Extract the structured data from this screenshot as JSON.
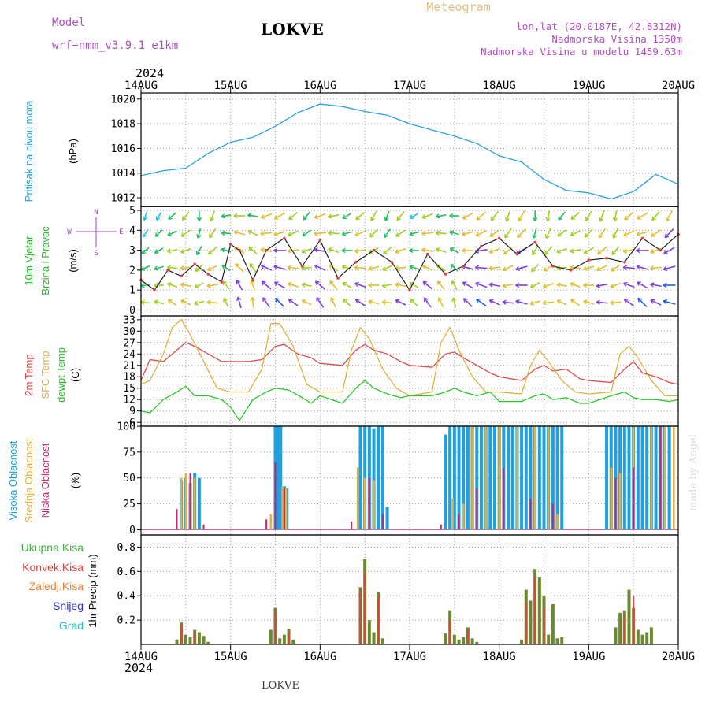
{
  "header": {
    "model_label": "Model",
    "model_name": "wrf−nmm_v3.9.1 e1km",
    "station": "LOKVE",
    "title": "Meteogram",
    "lonlat": "lon,lat (20.0187E, 42.8312N)",
    "altitude": "Nadmorska Visina 1350m",
    "model_altitude": "Nadmorska Visina u modelu 1459.63m",
    "year": "2024",
    "footer_station": "LOKVE",
    "credit": "made by Angel"
  },
  "time_axis": {
    "labels": [
      "14AUG",
      "15AUG",
      "16AUG",
      "17AUG",
      "18AUG",
      "19AUG",
      "20AUG"
    ],
    "range_days": [
      0,
      6
    ]
  },
  "compass": {
    "n": "N",
    "s": "S",
    "e": "E",
    "w": "W"
  },
  "colors": {
    "pressure": "#2aa0e0",
    "t2m": "#e04848",
    "tsfc": "#e0b040",
    "dewpt": "#28c828",
    "cloud_high": "#20a0e0",
    "cloud_mid": "#e0b040",
    "cloud_low": "#d02070",
    "total_precip": "#40b040",
    "conv_precip": "#e04040",
    "frozen_precip": "#f08030",
    "snow": "#3030d0",
    "hail": "#20c0c0",
    "wind_label": "#20c020",
    "compass": "#a040c0"
  },
  "chart_data": [
    {
      "type": "line",
      "name": "pressure",
      "ylabel": "Pritisak na nivou mora",
      "unit": "(hPa)",
      "ylim": [
        1011.3,
        1020.5
      ],
      "yticks": [
        1012,
        1014,
        1016,
        1018,
        1020
      ],
      "grid": true,
      "series": [
        {
          "x": [
            0,
            0.25,
            0.5,
            0.75,
            1.0,
            1.25,
            1.5,
            1.75,
            2.0,
            2.25,
            2.5,
            2.75,
            3.0,
            3.25,
            3.5,
            3.75,
            4.0,
            4.25,
            4.5,
            4.75,
            5.0,
            5.25,
            5.5,
            5.75,
            6.0
          ],
          "values": [
            1013.8,
            1014.2,
            1014.4,
            1015.6,
            1016.5,
            1016.9,
            1017.8,
            1018.9,
            1019.6,
            1019.4,
            1019.0,
            1018.7,
            1018.0,
            1017.5,
            1017.0,
            1016.4,
            1015.4,
            1014.9,
            1013.5,
            1012.6,
            1012.4,
            1011.9,
            1012.5,
            1013.9,
            1013.1
          ]
        }
      ]
    },
    {
      "type": "line",
      "name": "wind",
      "ylabel": [
        "10m Vjetar",
        "Brzina i Pravac"
      ],
      "unit": "(m/s)",
      "ylim": [
        -0.3,
        5.2
      ],
      "yticks": [
        0,
        1,
        2,
        3,
        4,
        5
      ],
      "grid": true,
      "series": [
        {
          "name": "speed",
          "x": [
            0,
            0.15,
            0.3,
            0.45,
            0.6,
            0.75,
            0.9,
            1.0,
            1.1,
            1.25,
            1.4,
            1.6,
            1.8,
            2.0,
            2.2,
            2.4,
            2.6,
            2.8,
            3.0,
            3.2,
            3.4,
            3.6,
            3.8,
            4.0,
            4.2,
            4.4,
            4.6,
            4.8,
            5.0,
            5.2,
            5.4,
            5.6,
            5.8,
            6.0
          ],
          "values": [
            1.5,
            1.0,
            2.0,
            1.7,
            2.3,
            1.8,
            1.4,
            3.3,
            3.0,
            1.5,
            3.0,
            3.6,
            2.2,
            3.5,
            1.6,
            2.4,
            3.0,
            2.4,
            1.0,
            2.8,
            1.8,
            2.2,
            3.2,
            3.6,
            2.8,
            3.4,
            2.2,
            2.0,
            2.5,
            2.6,
            2.4,
            3.6,
            3.0,
            3.8
          ]
        }
      ],
      "barbs": {
        "x": [
          0.05,
          0.2,
          0.35,
          0.5,
          0.65,
          0.8,
          0.95,
          1.1,
          1.25,
          1.4,
          1.55,
          1.7,
          1.85,
          2.0,
          2.15,
          2.3,
          2.45,
          2.6,
          2.75,
          2.9,
          3.05,
          3.2,
          3.35,
          3.5,
          3.65,
          3.8,
          3.95,
          4.1,
          4.25,
          4.4,
          4.55,
          4.7,
          4.85,
          5.0,
          5.15,
          5.3,
          5.45,
          5.6,
          5.75,
          5.9
        ],
        "direction_deg": [
          200,
          210,
          230,
          220,
          180,
          200,
          260,
          270,
          280,
          250,
          240,
          230,
          220,
          250,
          260,
          240,
          230,
          210,
          200,
          220,
          240,
          250,
          260,
          270,
          240,
          230,
          220,
          200,
          210,
          180,
          190,
          220,
          230,
          210,
          200,
          190,
          230,
          240,
          220,
          210
        ],
        "speed": [
          1.2,
          1.5,
          2.0,
          2.4,
          1.8,
          2.6,
          1.6,
          3.0,
          2.2,
          3.2,
          3.6,
          2.8,
          2.0,
          3.4,
          2.6,
          1.8,
          3.0,
          2.4,
          2.0,
          2.8,
          1.4,
          3.0,
          2.2,
          1.6,
          3.2,
          3.6,
          3.0,
          2.8,
          3.4,
          2.0,
          2.6,
          2.2,
          2.4,
          2.6,
          3.0,
          2.4,
          3.2,
          3.6,
          3.0,
          3.8
        ]
      }
    },
    {
      "type": "line",
      "name": "temperature",
      "ylabel": [
        "2m Temp",
        "SFC Temp",
        "dewpt Temp"
      ],
      "unit": "(C)",
      "ylim": [
        5,
        34
      ],
      "yticks": [
        6,
        9,
        12,
        15,
        18,
        21,
        24,
        27,
        30,
        33
      ],
      "grid": true,
      "series": [
        {
          "name": "2m Temp",
          "x": [
            0,
            0.1,
            0.25,
            0.4,
            0.5,
            0.6,
            0.75,
            0.9,
            1.0,
            1.2,
            1.35,
            1.5,
            1.6,
            1.75,
            1.9,
            2.0,
            2.25,
            2.4,
            2.5,
            2.6,
            2.75,
            2.9,
            3.0,
            3.25,
            3.4,
            3.5,
            3.6,
            3.75,
            3.9,
            4.0,
            4.25,
            4.4,
            4.5,
            4.6,
            4.75,
            4.9,
            5.0,
            5.25,
            5.4,
            5.5,
            5.6,
            5.75,
            5.9,
            6.0
          ],
          "values": [
            17,
            22.5,
            22,
            25,
            27,
            26,
            24,
            22,
            22,
            22,
            22.5,
            26,
            26.5,
            24,
            23,
            21.5,
            21,
            25,
            26.5,
            25,
            24,
            22,
            21,
            20.5,
            24,
            24.5,
            23,
            21,
            19,
            18,
            17,
            20,
            21,
            19.5,
            20,
            17.5,
            17,
            16.5,
            20,
            22,
            19,
            18,
            16.5,
            16
          ]
        },
        {
          "name": "SFC Temp",
          "x": [
            0,
            0.1,
            0.25,
            0.35,
            0.45,
            0.55,
            0.7,
            0.85,
            1.0,
            1.2,
            1.35,
            1.45,
            1.55,
            1.7,
            1.85,
            2.0,
            2.25,
            2.35,
            2.45,
            2.55,
            2.7,
            2.85,
            3.0,
            3.25,
            3.35,
            3.45,
            3.55,
            3.7,
            3.85,
            4.0,
            4.25,
            4.35,
            4.45,
            4.55,
            4.7,
            4.85,
            5.0,
            5.25,
            5.35,
            5.45,
            5.55,
            5.7,
            5.85,
            6.0
          ],
          "values": [
            16,
            17,
            24,
            31,
            33,
            29,
            22,
            15,
            14,
            14,
            20,
            32,
            32,
            26,
            16,
            14,
            14,
            25,
            31,
            28,
            20,
            15,
            13,
            14,
            27,
            31,
            25,
            18,
            14,
            14,
            13.5,
            21,
            25,
            22,
            17,
            14,
            13.5,
            14,
            24,
            26,
            23,
            17,
            13,
            13
          ]
        },
        {
          "name": "dewpt Temp",
          "x": [
            0,
            0.1,
            0.25,
            0.4,
            0.5,
            0.6,
            0.75,
            0.9,
            1.0,
            1.1,
            1.25,
            1.4,
            1.5,
            1.65,
            1.8,
            1.9,
            2.0,
            2.25,
            2.4,
            2.5,
            2.6,
            2.75,
            2.9,
            3.0,
            3.25,
            3.4,
            3.5,
            3.6,
            3.75,
            3.9,
            4.0,
            4.25,
            4.4,
            4.5,
            4.6,
            4.75,
            4.9,
            5.0,
            5.25,
            5.4,
            5.5,
            5.6,
            5.75,
            5.9,
            6.0
          ],
          "values": [
            9,
            8.5,
            12,
            14,
            15.5,
            13,
            13,
            12,
            10,
            6.5,
            12,
            14,
            15,
            14.5,
            12.5,
            11,
            13,
            11,
            15,
            17,
            15,
            13.5,
            12.5,
            13,
            13,
            14,
            15,
            14,
            13,
            14,
            11.5,
            11.5,
            13,
            13.5,
            12,
            12.5,
            11,
            11,
            13,
            14,
            12.5,
            12,
            12,
            11.5,
            12
          ]
        }
      ]
    },
    {
      "type": "bar",
      "name": "clouds",
      "ylabel": [
        "Visoka Oblacnost",
        "Srednja Oblacnost",
        "Niska Oblacnost"
      ],
      "unit": "(%)",
      "ylim": [
        -5,
        100
      ],
      "yticks": [
        0,
        25,
        50,
        75,
        100
      ],
      "grid": true,
      "series": [
        {
          "name": "Visoka Oblacnost",
          "x": [
            0.45,
            0.5,
            0.55,
            0.6,
            0.65,
            1.5,
            1.53,
            1.56,
            1.6,
            1.63,
            2.45,
            2.5,
            2.55,
            2.6,
            2.65,
            2.7,
            2.75,
            3.4,
            3.45,
            3.5,
            3.55,
            3.6,
            3.65,
            3.7,
            3.75,
            3.8,
            3.85,
            3.9,
            3.95,
            4.0,
            4.05,
            4.1,
            4.15,
            4.2,
            4.25,
            4.3,
            4.35,
            4.4,
            4.45,
            4.5,
            4.55,
            4.6,
            4.65,
            4.7,
            5.2,
            5.25,
            5.3,
            5.35,
            5.4,
            5.45,
            5.5,
            5.55,
            5.6,
            5.65,
            5.7,
            5.75,
            5.8,
            5.85,
            5.9
          ],
          "values": [
            48,
            50,
            45,
            55,
            50,
            100,
            100,
            100,
            42,
            40,
            100,
            100,
            100,
            98,
            100,
            100,
            22,
            92,
            100,
            100,
            100,
            100,
            100,
            100,
            100,
            100,
            100,
            100,
            100,
            100,
            100,
            100,
            100,
            100,
            100,
            100,
            100,
            100,
            100,
            100,
            100,
            100,
            100,
            100,
            100,
            100,
            100,
            100,
            100,
            100,
            100,
            100,
            100,
            100,
            100,
            100,
            100,
            100,
            100
          ]
        },
        {
          "name": "Srednja Oblacnost",
          "x": [
            0.45,
            0.5,
            0.55,
            0.6,
            1.45,
            1.58,
            1.62,
            2.42,
            2.5,
            2.6,
            3.48,
            3.6,
            3.7,
            3.85,
            4.0,
            4.2,
            4.4,
            4.55,
            4.65,
            5.25,
            5.35,
            5.5,
            5.7,
            5.85,
            5.95
          ],
          "values": [
            50,
            55,
            45,
            50,
            15,
            42,
            40,
            60,
            50,
            48,
            30,
            25,
            100,
            100,
            100,
            100,
            100,
            100,
            15,
            60,
            55,
            100,
            100,
            100,
            100
          ]
        },
        {
          "name": "Niska Oblacnost",
          "x": [
            0.4,
            0.55,
            0.7,
            1.4,
            1.5,
            1.6,
            2.35,
            2.55,
            2.7,
            3.35,
            3.55,
            3.75,
            4.05,
            4.35,
            4.6,
            5.3,
            5.5,
            5.8
          ],
          "values": [
            20,
            55,
            5,
            10,
            65,
            40,
            8,
            50,
            15,
            5,
            15,
            40,
            60,
            30,
            25,
            50,
            60,
            100
          ]
        }
      ]
    },
    {
      "type": "bar",
      "name": "precipitation",
      "ylabel": [
        "Ukupna Kisa",
        "Konvek.Kisa",
        "Zaledj.Kisa",
        "Snijeg",
        "Grad"
      ],
      "unit": "1hr Precip (mm)",
      "ylim": [
        0,
        0.9
      ],
      "yticks": [
        0.2,
        0.4,
        0.6,
        0.8
      ],
      "grid": true,
      "series": [
        {
          "name": "Ukupna Kisa",
          "x": [
            0.4,
            0.45,
            0.5,
            0.55,
            0.6,
            0.65,
            0.7,
            0.75,
            1.45,
            1.5,
            1.55,
            1.6,
            1.65,
            1.7,
            2.45,
            2.5,
            2.55,
            2.6,
            2.65,
            2.7,
            3.4,
            3.45,
            3.5,
            3.55,
            3.6,
            3.65,
            3.7,
            3.75,
            4.25,
            4.3,
            4.35,
            4.4,
            4.45,
            4.5,
            4.55,
            4.6,
            4.65,
            4.7,
            5.3,
            5.35,
            5.4,
            5.45,
            5.5,
            5.55,
            5.6,
            5.65,
            5.7
          ],
          "values": [
            0.04,
            0.18,
            0.08,
            0.06,
            0.12,
            0.1,
            0.07,
            0.02,
            0.12,
            0.3,
            0.05,
            0.08,
            0.13,
            0.04,
            0.47,
            0.7,
            0.2,
            0.1,
            0.43,
            0.05,
            0.09,
            0.28,
            0.08,
            0.04,
            0.06,
            0.14,
            0.05,
            0.02,
            0.04,
            0.45,
            0.36,
            0.62,
            0.55,
            0.4,
            0.08,
            0.33,
            0.05,
            0.06,
            0.14,
            0.26,
            0.28,
            0.45,
            0.3,
            0.12,
            0.08,
            0.1,
            0.14
          ]
        },
        {
          "name": "Konvek.Kisa",
          "x": [
            0.45,
            0.6,
            1.5,
            1.65,
            2.45,
            2.5,
            2.65,
            3.45,
            3.65,
            4.3,
            4.4,
            4.5,
            5.4,
            5.5
          ],
          "values": [
            0.15,
            0.1,
            0.28,
            0.1,
            0.45,
            0.6,
            0.4,
            0.2,
            0.12,
            0.35,
            0.55,
            0.3,
            0.25,
            0.4
          ]
        }
      ]
    }
  ]
}
